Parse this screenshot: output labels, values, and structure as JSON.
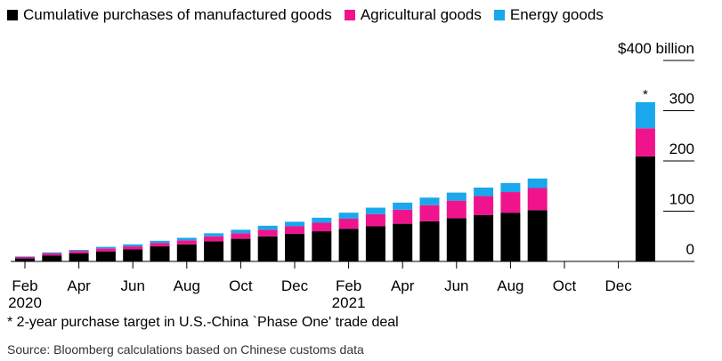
{
  "legend": [
    {
      "label": "Cumulative purchases of manufactured goods",
      "color": "#000000"
    },
    {
      "label": "Agricultural goods",
      "color": "#f0148c"
    },
    {
      "label": "Energy goods",
      "color": "#1aa7ec"
    }
  ],
  "footnote": "* 2-year purchase target in U.S.-China `Phase One' trade deal",
  "source": "Source: Bloomberg calculations based on Chinese customs data",
  "chart_data": {
    "type": "bar",
    "stacked": true,
    "ylim": [
      0,
      400
    ],
    "yticks": [
      {
        "value": 0,
        "label": "0"
      },
      {
        "value": 100,
        "label": "100"
      },
      {
        "value": 200,
        "label": "200"
      },
      {
        "value": 300,
        "label": "300"
      },
      {
        "value": 400,
        "label": "$400 billion"
      }
    ],
    "xticks": [
      {
        "index": 0,
        "label": "Feb",
        "sublabel": "2020"
      },
      {
        "index": 2,
        "label": "Apr"
      },
      {
        "index": 4,
        "label": "Jun"
      },
      {
        "index": 6,
        "label": "Aug"
      },
      {
        "index": 8,
        "label": "Oct"
      },
      {
        "index": 10,
        "label": "Dec"
      },
      {
        "index": 12,
        "label": "Feb",
        "sublabel": "2021"
      },
      {
        "index": 14,
        "label": "Apr"
      },
      {
        "index": 16,
        "label": "Jun"
      },
      {
        "index": 18,
        "label": "Aug"
      },
      {
        "index": 20,
        "label": "Oct"
      },
      {
        "index": 22,
        "label": "Dec"
      }
    ],
    "num_slots": 24,
    "series": [
      {
        "name": "Cumulative purchases of manufactured goods",
        "color": "#000000",
        "values": [
          6,
          12,
          16,
          20,
          24,
          30,
          34,
          40,
          45,
          50,
          55,
          60,
          65,
          70,
          75,
          80,
          86,
          92,
          97,
          102,
          null,
          null,
          null,
          209
        ]
      },
      {
        "name": "Agricultural goods",
        "color": "#f0148c",
        "values": [
          3,
          4,
          5,
          6,
          6,
          7,
          8,
          10,
          11,
          13,
          15,
          17,
          20,
          24,
          28,
          32,
          35,
          38,
          41,
          44,
          null,
          null,
          null,
          56
        ]
      },
      {
        "name": "Energy goods",
        "color": "#1aa7ec",
        "values": [
          1,
          2,
          2,
          3,
          4,
          4,
          5,
          6,
          7,
          8,
          9,
          10,
          12,
          13,
          14,
          15,
          16,
          17,
          18,
          19,
          null,
          null,
          null,
          52
        ]
      }
    ],
    "target_index": 23,
    "target_marker": "*"
  }
}
